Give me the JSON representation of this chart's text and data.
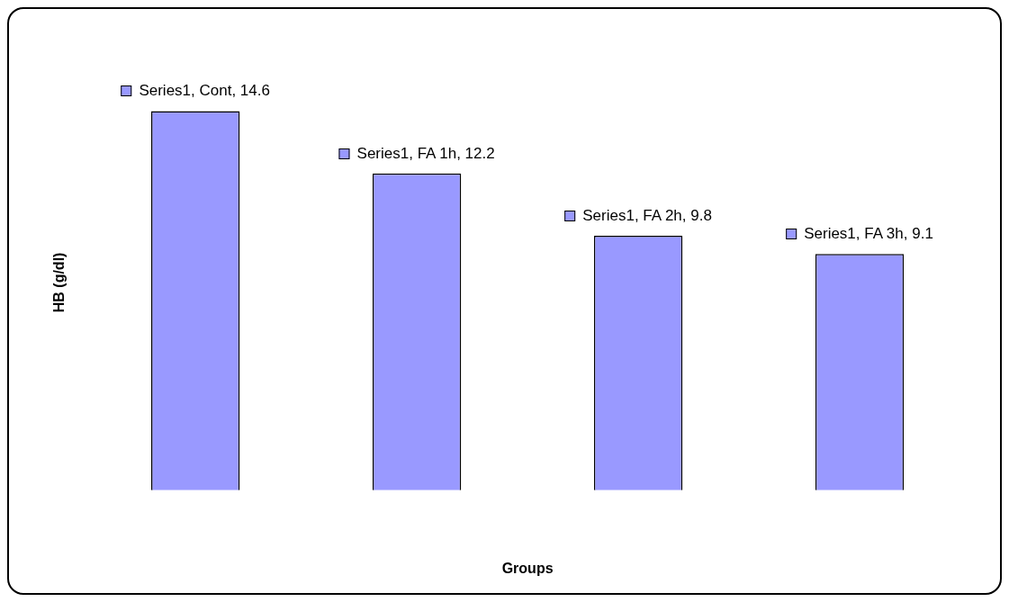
{
  "chart_data": {
    "type": "bar",
    "xlabel": "Groups",
    "ylabel": "HB (g/dl)",
    "categories": [
      null,
      null,
      null,
      null
    ],
    "series": [
      {
        "color": "#9999ff",
        "values": [
          14.6,
          12.2,
          9.8,
          9.1
        ],
        "value_labels": [
          "Series1, Cont, 14.6",
          "Series1, FA 1h, 12.2",
          "Series1, FA 2h, 9.8",
          "Series1, FA 3h, 9.1"
        ]
      }
    ],
    "tick_labels": false
  }
}
